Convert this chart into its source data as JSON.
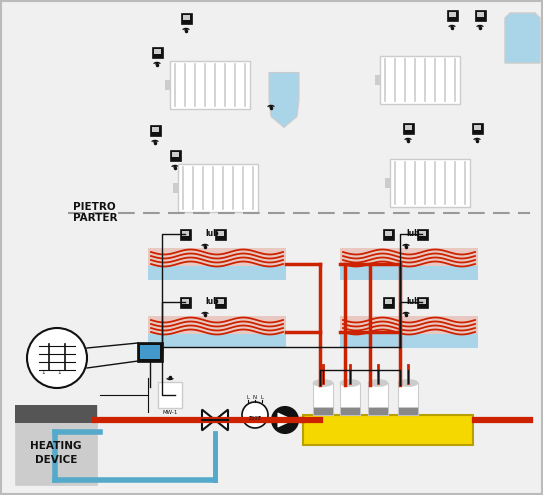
{
  "bg_color": "#f0f0f0",
  "red": "#cc2200",
  "blue": "#55aacc",
  "light_blue": "#aad4e8",
  "yellow": "#f5d800",
  "gray": "#999999",
  "light_gray": "#cccccc",
  "mid_gray": "#888888",
  "dark_gray": "#555555",
  "white": "#ffffff",
  "black": "#111111",
  "screen_blue": "#4499cc",
  "title_heating": "HEATING\nDEVICE",
  "pietro_label": "PIETRO",
  "parter_label": "PARTER"
}
